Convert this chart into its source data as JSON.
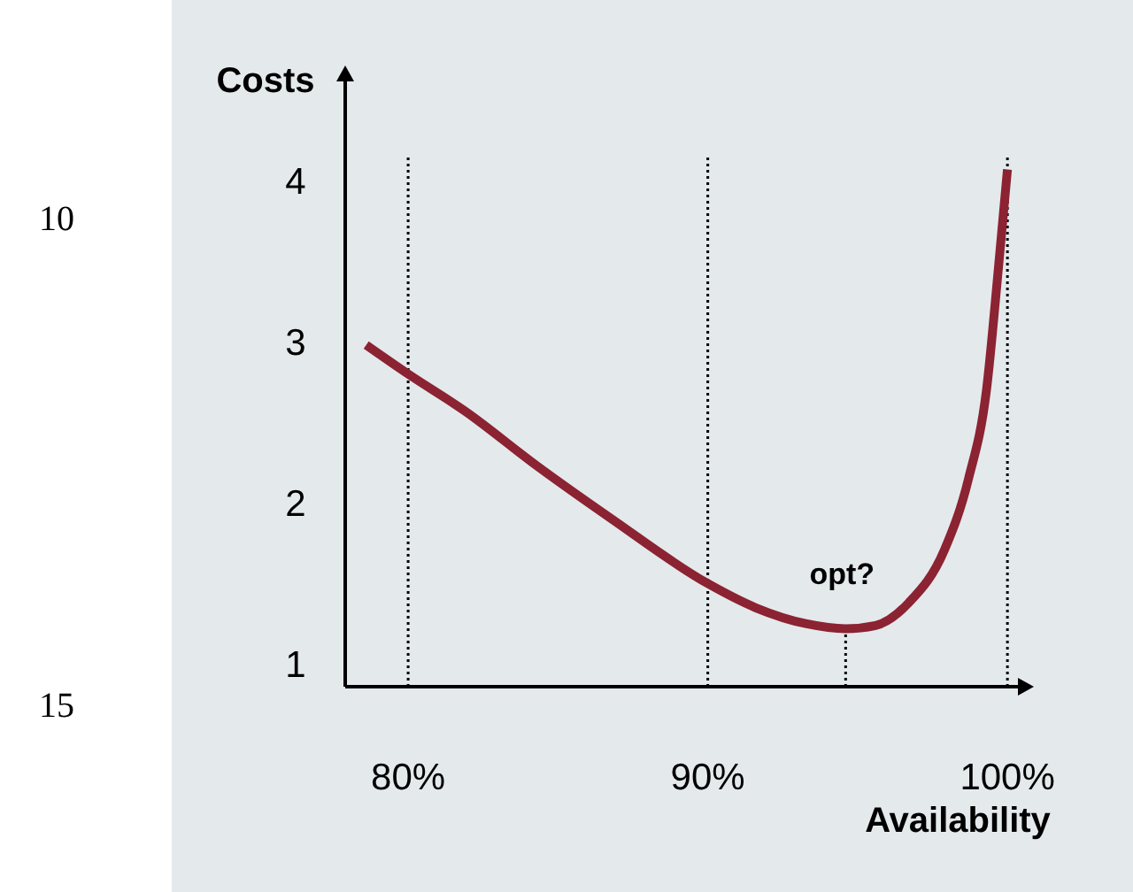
{
  "chart_data": {
    "type": "line",
    "xlabel": "Availability",
    "ylabel": "Costs",
    "x": [
      78.6,
      80,
      81.9,
      84.3,
      86.8,
      90,
      91.6,
      93.3,
      94.6,
      95.6,
      96.7,
      97.9,
      98.7,
      99.3,
      99.7,
      100
    ],
    "series": [
      {
        "color": "#8b2332",
        "values": [
          2.98,
          2.8,
          2.57,
          2.23,
          1.9,
          1.5,
          1.35,
          1.25,
          1.22,
          1.24,
          1.38,
          1.71,
          2.15,
          2.7,
          3.46,
          4.07
        ]
      }
    ],
    "xlim": [
      77.9,
      100.35
    ],
    "ylim": [
      0.86,
      4.66
    ],
    "xticks": [
      {
        "value": 80,
        "label": "80%"
      },
      {
        "value": 90,
        "label": "90%"
      },
      {
        "value": 100,
        "label": "100%"
      }
    ],
    "yticks": [
      1,
      2,
      3,
      4
    ],
    "grid": "x",
    "marker": "none",
    "line_style": "solid",
    "annotations": [
      {
        "text": "opt?",
        "x": 94.6,
        "y": 1.22
      },
      "10",
      "15"
    ]
  }
}
